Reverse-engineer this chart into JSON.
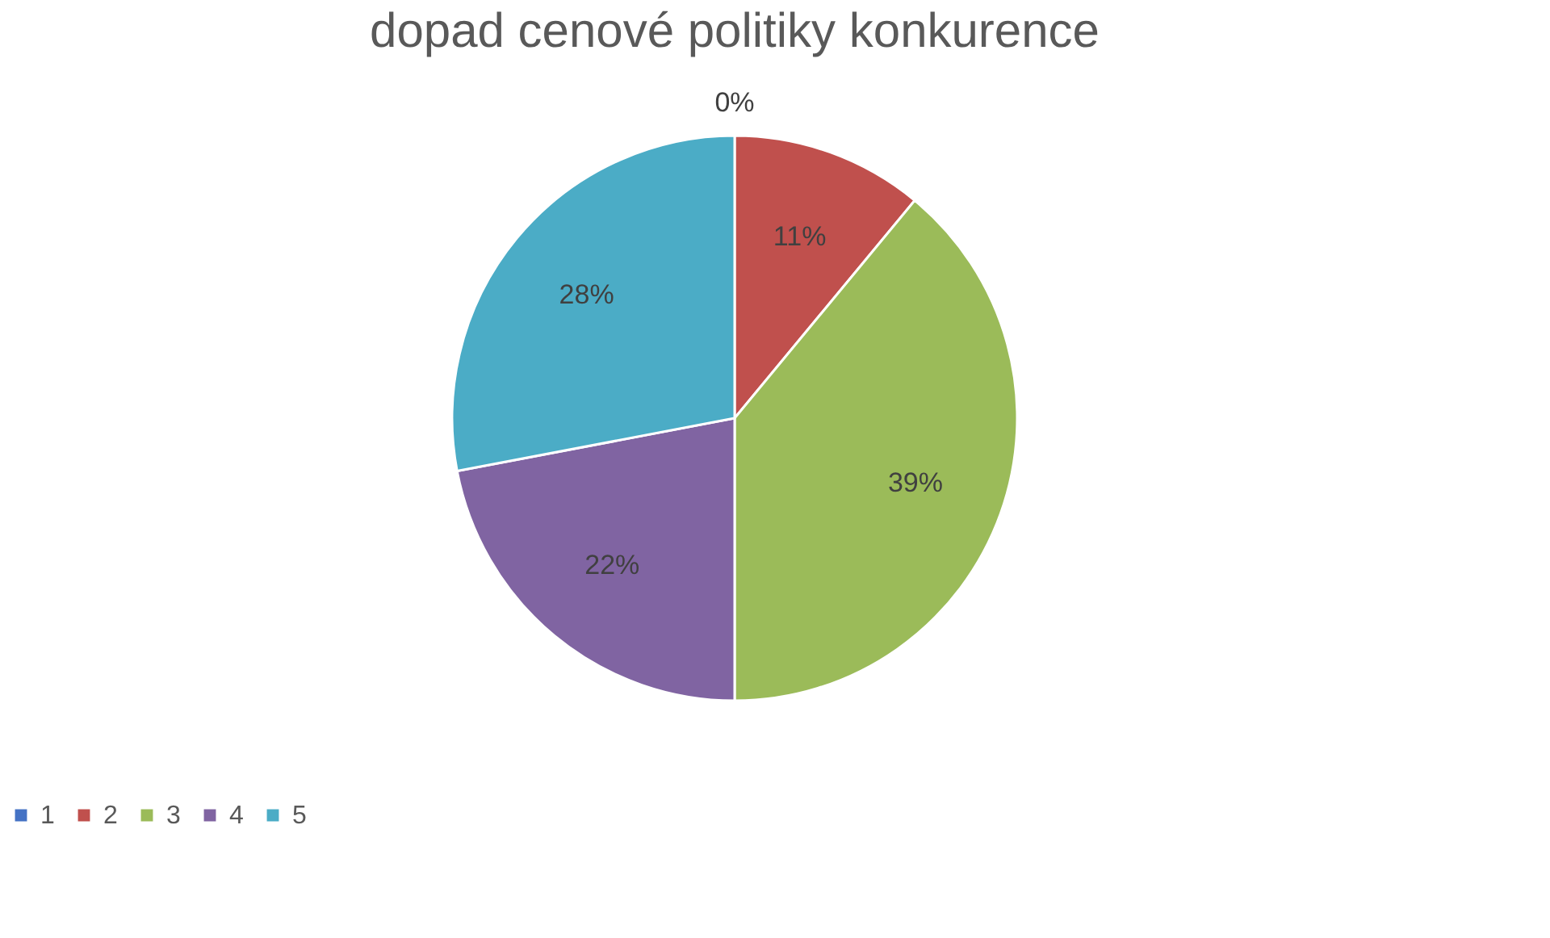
{
  "chart_data": {
    "type": "pie",
    "title": "dopad cenové politiky konkurence",
    "categories": [
      "1",
      "2",
      "3",
      "4",
      "5"
    ],
    "values": [
      0,
      11,
      39,
      22,
      28
    ],
    "value_labels": [
      "0%",
      "11%",
      "39%",
      "22%",
      "28%"
    ],
    "colors": [
      "#4472c4",
      "#c0504d",
      "#9bbb59",
      "#8064a2",
      "#4bacc6"
    ],
    "legend": "bottom"
  }
}
